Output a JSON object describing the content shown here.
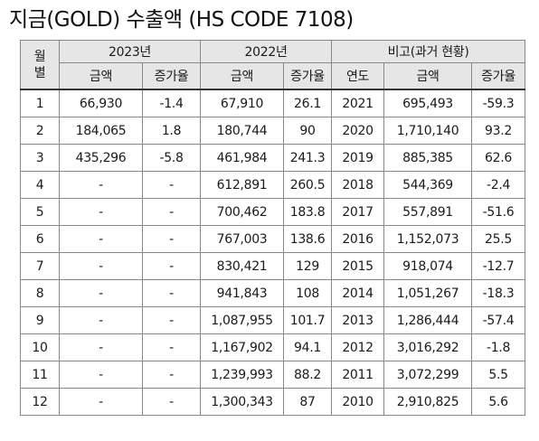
{
  "title": "지금(GOLD) 수출액 (HS CODE 7108)",
  "header": {
    "month": "월\n별",
    "g2023": "2023년",
    "g2022": "2022년",
    "gcompare": "비고(과거 현황)",
    "amount": "금액",
    "rate": "증가율",
    "year": "연도"
  },
  "rows": [
    {
      "m": "1",
      "a23": "66,930",
      "r23": "-1.4",
      "a22": "67,910",
      "r22": "26.1",
      "y": "2021",
      "ap": "695,493",
      "rp": "-59.3"
    },
    {
      "m": "2",
      "a23": "184,065",
      "r23": "1.8",
      "a22": "180,744",
      "r22": "90",
      "y": "2020",
      "ap": "1,710,140",
      "rp": "93.2"
    },
    {
      "m": "3",
      "a23": "435,296",
      "r23": "-5.8",
      "a22": "461,984",
      "r22": "241.3",
      "y": "2019",
      "ap": "885,385",
      "rp": "62.6"
    },
    {
      "m": "4",
      "a23": "-",
      "r23": "-",
      "a22": "612,891",
      "r22": "260.5",
      "y": "2018",
      "ap": "544,369",
      "rp": "-2.4"
    },
    {
      "m": "5",
      "a23": "-",
      "r23": "-",
      "a22": "700,462",
      "r22": "183.8",
      "y": "2017",
      "ap": "557,891",
      "rp": "-51.6"
    },
    {
      "m": "6",
      "a23": "-",
      "r23": "-",
      "a22": "767,003",
      "r22": "138.6",
      "y": "2016",
      "ap": "1,152,073",
      "rp": "25.5"
    },
    {
      "m": "7",
      "a23": "-",
      "r23": "-",
      "a22": "830,421",
      "r22": "129",
      "y": "2015",
      "ap": "918,074",
      "rp": "-12.7"
    },
    {
      "m": "8",
      "a23": "-",
      "r23": "-",
      "a22": "941,843",
      "r22": "108",
      "y": "2014",
      "ap": "1,051,267",
      "rp": "-18.3"
    },
    {
      "m": "9",
      "a23": "-",
      "r23": "-",
      "a22": "1,087,955",
      "r22": "101.7",
      "y": "2013",
      "ap": "1,286,444",
      "rp": "-57.4"
    },
    {
      "m": "10",
      "a23": "-",
      "r23": "-",
      "a22": "1,167,902",
      "r22": "94.1",
      "y": "2012",
      "ap": "3,016,292",
      "rp": "-1.8"
    },
    {
      "m": "11",
      "a23": "-",
      "r23": "-",
      "a22": "1,239,993",
      "r22": "88.2",
      "y": "2011",
      "ap": "3,072,299",
      "rp": "5.5"
    },
    {
      "m": "12",
      "a23": "-",
      "r23": "-",
      "a22": "1,300,343",
      "r22": "87",
      "y": "2010",
      "ap": "2,910,825",
      "rp": "5.6"
    }
  ]
}
